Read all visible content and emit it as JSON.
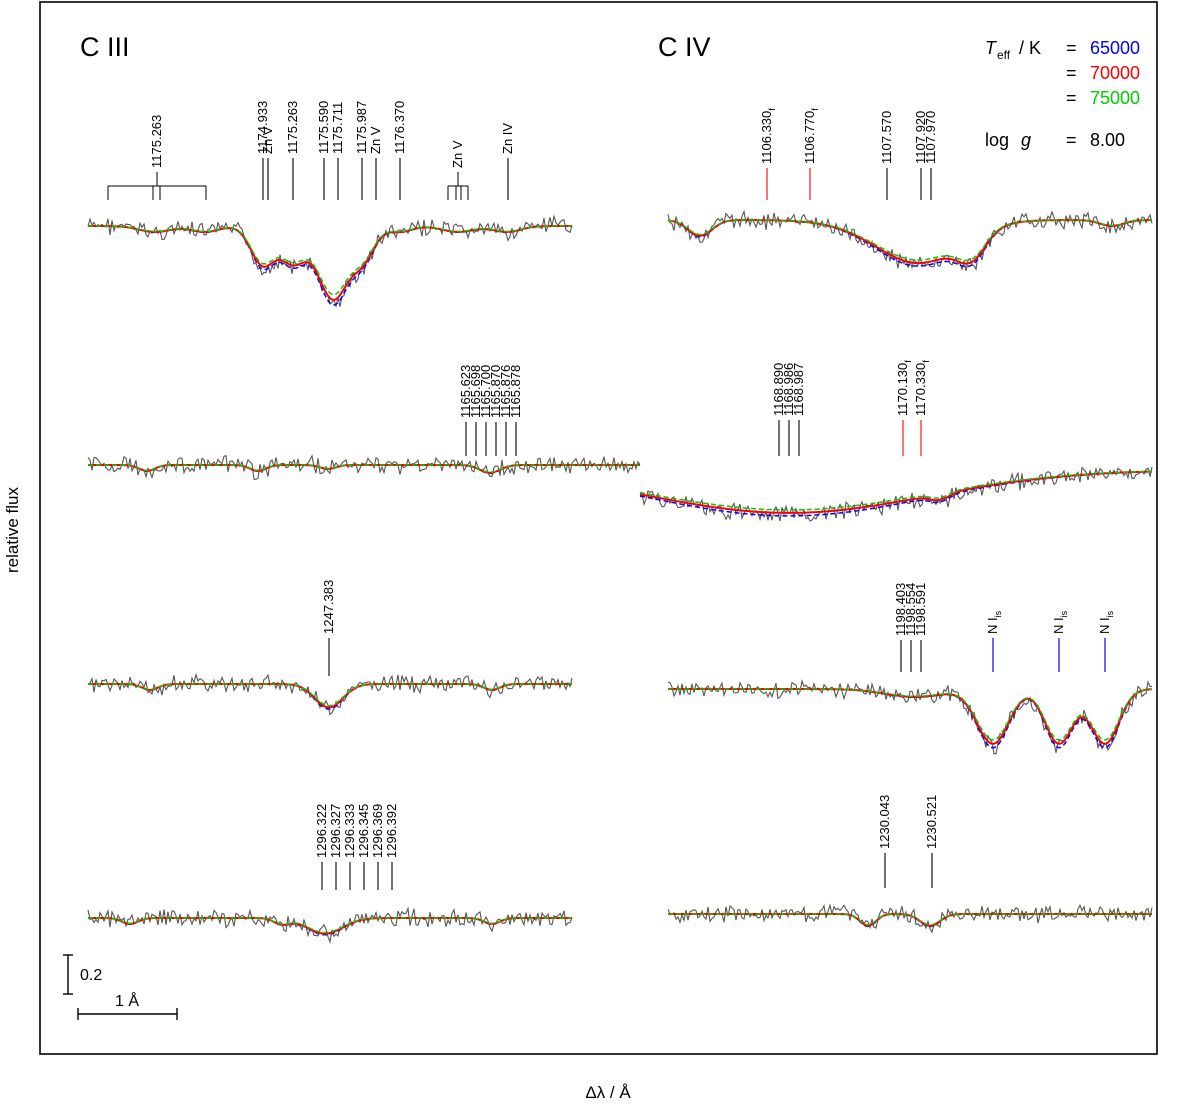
{
  "chart_data": {
    "type": "line",
    "xlabel": "Δλ / Å",
    "ylabel": "relative flux",
    "colors": {
      "observed": "#555555",
      "model_65000": "#0000ff",
      "model_70000": "#ff0000",
      "model_75000": "#00cc00",
      "forbidden": "#ff0000",
      "interstellar": "#0000ff"
    },
    "legend": {
      "teff_label": "T",
      "teff_sub": "eff",
      "teff_unit": "/ K",
      "eq": "=",
      "teff_values": [
        "65000",
        "70000",
        "75000"
      ],
      "logg_label": "log",
      "logg_var": "g",
      "logg_value": "8.00"
    },
    "scale_bars": {
      "flux": "0.2",
      "wavelength": "1 Å"
    },
    "panels": [
      {
        "id": "ciii-1",
        "title": "C III",
        "line_ids": [
          "1174.933",
          "Zn V",
          "1175.263",
          "1175.590",
          "1175.711",
          "1175.987",
          "Zn V",
          "1176.370",
          "Zn V",
          "Zn V",
          "Zn IV"
        ],
        "absorption_depths": [
          0.2,
          0.18,
          0.22,
          0.19,
          0.18
        ]
      },
      {
        "id": "civ-1",
        "title": "C IV",
        "line_ids": [
          "1106.330",
          "1106.770",
          "1107.570",
          "1107.920",
          "1107.970"
        ],
        "forbidden_mark": "f",
        "absorption_depths": [
          0.18,
          0.08,
          0.12
        ]
      },
      {
        "id": "ciii-2",
        "line_ids": [
          "1165.623",
          "1165.698",
          "1165.700",
          "1165.870",
          "1165.876",
          "1165.878"
        ],
        "absorption_depths": [
          0.02,
          0.04
        ]
      },
      {
        "id": "civ-2",
        "line_ids": [
          "1168.890",
          "1168.986",
          "1168.987",
          "1170.130",
          "1170.330"
        ],
        "forbidden_mark": "f",
        "absorption_depths": [
          0.22
        ]
      },
      {
        "id": "ciii-3",
        "line_ids": [
          "1247.383"
        ],
        "absorption_depths": [
          0.12
        ]
      },
      {
        "id": "civ-3",
        "line_ids": [
          "1198.403",
          "1198.554",
          "1198.591"
        ],
        "interstellar_ids": [
          "N I",
          "N I",
          "N I"
        ],
        "interstellar_mark": "is",
        "absorption_depths": [
          0.04,
          0.28,
          0.28,
          0.28
        ]
      },
      {
        "id": "ciii-4",
        "line_ids": [
          "1296.322",
          "1296.327",
          "1296.333",
          "1296.345",
          "1296.369",
          "1296.392"
        ],
        "absorption_depths": [
          0.08
        ]
      },
      {
        "id": "civ-4",
        "line_ids": [
          "1230.043",
          "1230.521"
        ],
        "absorption_depths": [
          0.06,
          0.06
        ]
      }
    ]
  }
}
